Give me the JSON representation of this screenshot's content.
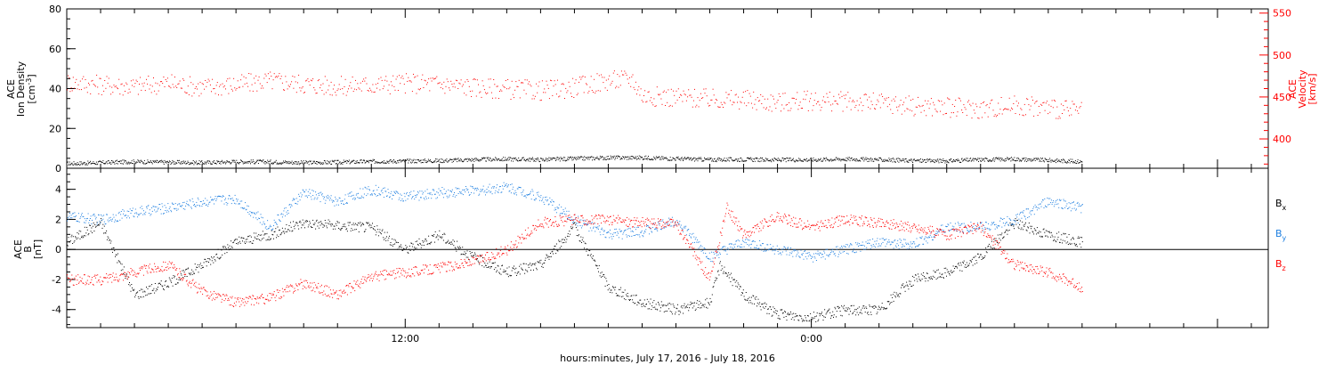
{
  "chart_data": [
    {
      "type": "scatter",
      "panel": "top",
      "xlabel": "hours:minutes, July 17, 2016 - July 18, 2016",
      "x_range_hours": [
        2.0,
        37.5
      ],
      "x_tick_labels": [
        {
          "hour": 12,
          "label": "12:00"
        },
        {
          "hour": 24,
          "label": "0:00"
        }
      ],
      "left_axis": {
        "label_lines": [
          "ACE",
          "Ion Density"
        ],
        "unit_base": "[cm",
        "unit_sup": "-3",
        "unit_end": "]",
        "ylim": [
          0,
          80
        ],
        "ticks": [
          0,
          20,
          40,
          60,
          80
        ],
        "color": "#000000"
      },
      "right_axis": {
        "label_lines": [
          "ACE",
          "Velocity",
          "[km/s]"
        ],
        "ylim": [
          365,
          555
        ],
        "ticks": [
          400,
          450,
          500,
          550
        ],
        "color": "#ff0000"
      },
      "series": [
        {
          "axis": "left",
          "color": "#000000",
          "points": [
            [
              2.0,
              2.5
            ],
            [
              3.0,
              3.0
            ],
            [
              4.0,
              3.5
            ],
            [
              5.0,
              3.2
            ],
            [
              6.0,
              3.0
            ],
            [
              7.0,
              3.5
            ],
            [
              8.0,
              3.4
            ],
            [
              9.0,
              3.0
            ],
            [
              10.0,
              3.2
            ],
            [
              11.0,
              3.6
            ],
            [
              12.0,
              3.8
            ],
            [
              13.0,
              4.0
            ],
            [
              14.0,
              4.5
            ],
            [
              15.0,
              4.8
            ],
            [
              16.0,
              4.5
            ],
            [
              17.0,
              5.0
            ],
            [
              18.0,
              5.5
            ],
            [
              19.0,
              5.5
            ],
            [
              20.0,
              5.0
            ],
            [
              21.0,
              4.5
            ],
            [
              22.0,
              4.6
            ],
            [
              23.0,
              4.4
            ],
            [
              24.0,
              4.5
            ],
            [
              25.0,
              4.8
            ],
            [
              26.0,
              4.5
            ],
            [
              27.0,
              4.0
            ],
            [
              28.0,
              3.9
            ],
            [
              29.0,
              4.5
            ],
            [
              30.0,
              4.8
            ],
            [
              31.0,
              4.2
            ],
            [
              32.0,
              3.5
            ]
          ]
        },
        {
          "axis": "right",
          "color": "#ff0000",
          "points": [
            [
              2.0,
              468
            ],
            [
              3.0,
              465
            ],
            [
              4.0,
              463
            ],
            [
              5.0,
              467
            ],
            [
              6.0,
              462
            ],
            [
              7.0,
              465
            ],
            [
              8.0,
              470
            ],
            [
              9.0,
              466
            ],
            [
              10.0,
              463
            ],
            [
              11.0,
              465
            ],
            [
              12.0,
              467
            ],
            [
              13.0,
              466
            ],
            [
              14.0,
              462
            ],
            [
              15.0,
              460
            ],
            [
              16.0,
              458
            ],
            [
              17.0,
              462
            ],
            [
              18.0,
              470
            ],
            [
              18.7,
              472
            ],
            [
              19.0,
              452
            ],
            [
              20.0,
              450
            ],
            [
              21.0,
              448
            ],
            [
              22.0,
              447
            ],
            [
              23.0,
              444
            ],
            [
              24.0,
              446
            ],
            [
              25.0,
              445
            ],
            [
              26.0,
              443
            ],
            [
              27.0,
              440
            ],
            [
              28.0,
              438
            ],
            [
              29.0,
              436
            ],
            [
              30.0,
              440
            ],
            [
              31.0,
              438
            ],
            [
              32.0,
              432
            ]
          ]
        }
      ]
    },
    {
      "type": "scatter",
      "panel": "bottom",
      "left_axis": {
        "label_lines": [
          "ACE",
          "B"
        ],
        "unit": "[nT]",
        "ylim": [
          -5.2,
          5.4
        ],
        "ticks": [
          -4,
          -2,
          0,
          2,
          4
        ],
        "color": "#000000"
      },
      "legend": [
        {
          "base": "B",
          "sub": "x",
          "color": "#000000"
        },
        {
          "base": "B",
          "sub": "y",
          "color": "#1e7fe0"
        },
        {
          "base": "B",
          "sub": "z",
          "color": "#ff0000"
        }
      ],
      "series": [
        {
          "legend_index": 0,
          "color": "#000000",
          "points": [
            [
              2.0,
              0.5
            ],
            [
              3.0,
              1.8
            ],
            [
              4.0,
              -3.0
            ],
            [
              5.0,
              -2.2
            ],
            [
              6.0,
              -1.0
            ],
            [
              7.0,
              0.5
            ],
            [
              8.0,
              1.0
            ],
            [
              9.0,
              1.8
            ],
            [
              10.0,
              1.6
            ],
            [
              11.0,
              1.5
            ],
            [
              12.0,
              0.0
            ],
            [
              13.0,
              1.0
            ],
            [
              14.0,
              -0.5
            ],
            [
              15.0,
              -1.5
            ],
            [
              16.0,
              -1.0
            ],
            [
              17.0,
              1.5
            ],
            [
              18.0,
              -2.5
            ],
            [
              19.0,
              -3.5
            ],
            [
              20.0,
              -4.0
            ],
            [
              21.0,
              -3.5
            ],
            [
              21.3,
              -1.0
            ],
            [
              22.0,
              -3.0
            ],
            [
              23.0,
              -4.3
            ],
            [
              24.0,
              -4.5
            ],
            [
              25.0,
              -4.0
            ],
            [
              26.0,
              -4.0
            ],
            [
              27.0,
              -2.0
            ],
            [
              28.0,
              -1.5
            ],
            [
              29.0,
              -0.5
            ],
            [
              30.0,
              1.8
            ],
            [
              31.0,
              1.0
            ],
            [
              32.0,
              0.5
            ]
          ]
        },
        {
          "legend_index": 1,
          "color": "#1e7fe0",
          "points": [
            [
              2.0,
              2.2
            ],
            [
              3.0,
              2.0
            ],
            [
              4.0,
              2.5
            ],
            [
              5.0,
              2.8
            ],
            [
              6.0,
              3.2
            ],
            [
              7.0,
              3.4
            ],
            [
              8.0,
              1.5
            ],
            [
              9.0,
              3.8
            ],
            [
              10.0,
              3.2
            ],
            [
              11.0,
              4.0
            ],
            [
              12.0,
              3.5
            ],
            [
              13.0,
              3.8
            ],
            [
              14.0,
              3.9
            ],
            [
              15.0,
              4.2
            ],
            [
              16.0,
              3.5
            ],
            [
              17.0,
              2.0
            ],
            [
              18.0,
              1.0
            ],
            [
              19.0,
              1.2
            ],
            [
              20.0,
              2.0
            ],
            [
              21.0,
              -0.5
            ],
            [
              22.0,
              0.5
            ],
            [
              23.0,
              0.0
            ],
            [
              24.0,
              -0.5
            ],
            [
              25.0,
              0.0
            ],
            [
              26.0,
              0.5
            ],
            [
              27.0,
              0.3
            ],
            [
              28.0,
              1.5
            ],
            [
              29.0,
              1.5
            ],
            [
              30.0,
              2.0
            ],
            [
              31.0,
              3.2
            ],
            [
              32.0,
              2.8
            ]
          ]
        },
        {
          "legend_index": 2,
          "color": "#ff0000",
          "points": [
            [
              2.0,
              -2.0
            ],
            [
              3.0,
              -2.0
            ],
            [
              4.0,
              -1.5
            ],
            [
              5.0,
              -1.0
            ],
            [
              6.0,
              -2.8
            ],
            [
              7.0,
              -3.5
            ],
            [
              8.0,
              -3.2
            ],
            [
              9.0,
              -2.2
            ],
            [
              10.0,
              -3.0
            ],
            [
              11.0,
              -1.8
            ],
            [
              12.0,
              -1.5
            ],
            [
              13.0,
              -1.2
            ],
            [
              14.0,
              -0.8
            ],
            [
              15.0,
              0.0
            ],
            [
              16.0,
              1.8
            ],
            [
              17.0,
              2.0
            ],
            [
              18.0,
              2.0
            ],
            [
              19.0,
              1.8
            ],
            [
              20.0,
              1.7
            ],
            [
              21.0,
              -2.0
            ],
            [
              21.5,
              2.8
            ],
            [
              22.0,
              1.0
            ],
            [
              23.0,
              2.2
            ],
            [
              24.0,
              1.5
            ],
            [
              25.0,
              2.0
            ],
            [
              26.0,
              1.8
            ],
            [
              27.0,
              1.5
            ],
            [
              28.0,
              1.0
            ],
            [
              29.0,
              1.5
            ],
            [
              30.0,
              -1.0
            ],
            [
              31.0,
              -1.5
            ],
            [
              32.0,
              -2.5
            ]
          ]
        }
      ]
    }
  ]
}
